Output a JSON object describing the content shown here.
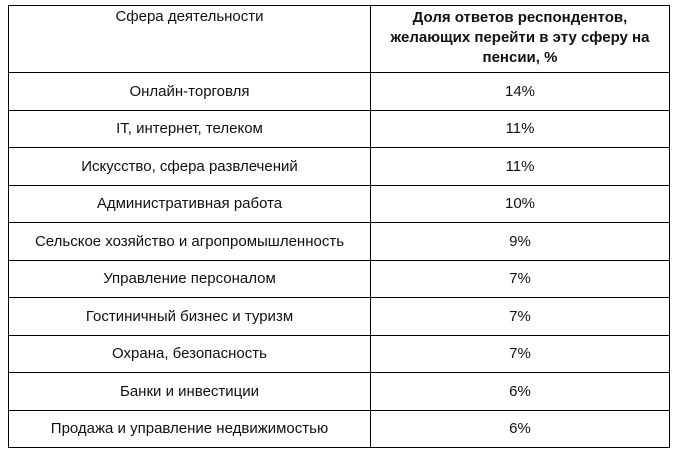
{
  "table": {
    "header": [
      "Сфера деятельности",
      "Доля ответов респондентов, желающих перейти в эту сферу на пенсии, %"
    ],
    "rows": [
      [
        "Онлайн-торговля",
        "14%"
      ],
      [
        "IT, интернет, телеком",
        "11%"
      ],
      [
        "Искусство, сфера развлечений",
        "11%"
      ],
      [
        "Административная работа",
        "10%"
      ],
      [
        "Сельское хозяйство и агропромышленность",
        "9%"
      ],
      [
        "Управление персоналом",
        "7%"
      ],
      [
        "Гостиничный бизнес и туризм",
        "7%"
      ],
      [
        "Охрана, безопасность",
        "7%"
      ],
      [
        "Банки и инвестиции",
        "6%"
      ],
      [
        "Продажа и управление недвижимостью",
        "6%"
      ]
    ]
  }
}
